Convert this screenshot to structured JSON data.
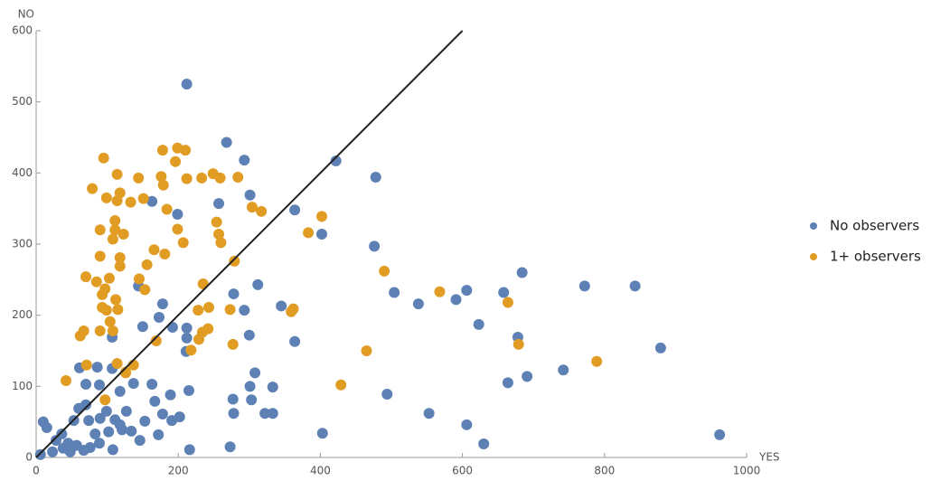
{
  "chart_data": {
    "type": "scatter",
    "x_label": "YES",
    "y_label": "NO",
    "xlim": [
      0,
      1000
    ],
    "ylim": [
      0,
      600
    ],
    "xticks": [
      0,
      200,
      400,
      600,
      800,
      1000
    ],
    "yticks": [
      0,
      100,
      200,
      300,
      400,
      500,
      600
    ],
    "reference_line": {
      "x": [
        0,
        600
      ],
      "y": [
        0,
        600
      ],
      "color": "#222222"
    },
    "legend_position": "right",
    "series": [
      {
        "name": "No observers",
        "color": "#5E81B5",
        "x": [
          212,
          268,
          293,
          422,
          478,
          163,
          199,
          257,
          301,
          364,
          402,
          476,
          684,
          772,
          843,
          504,
          538,
          591,
          606,
          658,
          623,
          678,
          879,
          742,
          691,
          664,
          494,
          553,
          606,
          630,
          962,
          403,
          216,
          273,
          312,
          278,
          293,
          345,
          364,
          300,
          308,
          301,
          333,
          303,
          277,
          278,
          322,
          333,
          212,
          212,
          211,
          215,
          192,
          173,
          178,
          163,
          167,
          189,
          178,
          191,
          202,
          144,
          150,
          137,
          107,
          107,
          118,
          86,
          89,
          70,
          61,
          70,
          74,
          60,
          53,
          10,
          15,
          28,
          38,
          57,
          67,
          83,
          102,
          89,
          108,
          118,
          127,
          153,
          146,
          172,
          134,
          76,
          48,
          23,
          6,
          45,
          36,
          90,
          111,
          99,
          121
        ],
        "values": [
          525,
          443,
          418,
          417,
          394,
          360,
          342,
          357,
          369,
          348,
          314,
          297,
          260,
          241,
          241,
          232,
          216,
          222,
          235,
          232,
          187,
          169,
          154,
          123,
          114,
          105,
          89,
          62,
          46,
          19,
          32,
          34,
          11,
          15,
          243,
          230,
          207,
          213,
          163,
          172,
          119,
          100,
          99,
          81,
          82,
          62,
          62,
          62,
          182,
          168,
          149,
          94,
          183,
          197,
          216,
          103,
          79,
          88,
          61,
          52,
          57,
          241,
          184,
          104,
          125,
          169,
          93,
          127,
          102,
          103,
          126,
          74,
          52,
          69,
          52,
          50,
          42,
          24,
          13,
          17,
          10,
          33,
          36,
          20,
          11,
          46,
          65,
          51,
          24,
          32,
          37,
          14,
          8,
          8,
          4,
          20,
          33,
          55,
          53,
          65,
          39
        ]
      },
      {
        "name": "1+ observers",
        "color": "#E19C24",
        "x": [
          95,
          199,
          210,
          178,
          196,
          176,
          179,
          249,
          259,
          233,
          284,
          212,
          114,
          144,
          79,
          118,
          99,
          114,
          133,
          151,
          184,
          304,
          317,
          402,
          383,
          254,
          257,
          260,
          207,
          199,
          166,
          181,
          111,
          111,
          123,
          108,
          90,
          90,
          118,
          118,
          156,
          70,
          85,
          103,
          145,
          153,
          97,
          93,
          112,
          93,
          99,
          115,
          104,
          67,
          90,
          108,
          62,
          169,
          235,
          243,
          228,
          242,
          234,
          229,
          218,
          273,
          277,
          279,
          359,
          362,
          490,
          568,
          664,
          679,
          789,
          465,
          429,
          42,
          71,
          137,
          114,
          126,
          126,
          97
        ],
        "values": [
          421,
          435,
          432,
          432,
          416,
          395,
          383,
          399,
          393,
          393,
          394,
          392,
          398,
          393,
          378,
          372,
          365,
          361,
          359,
          364,
          349,
          352,
          346,
          339,
          316,
          331,
          314,
          302,
          302,
          321,
          292,
          286,
          333,
          320,
          314,
          307,
          320,
          283,
          281,
          269,
          271,
          254,
          247,
          252,
          251,
          236,
          237,
          229,
          222,
          211,
          207,
          208,
          191,
          178,
          178,
          178,
          171,
          164,
          244,
          211,
          207,
          181,
          176,
          166,
          151,
          208,
          159,
          276,
          205,
          209,
          262,
          233,
          218,
          159,
          135,
          150,
          102,
          108,
          130,
          130,
          132,
          120,
          119,
          81
        ]
      }
    ]
  }
}
